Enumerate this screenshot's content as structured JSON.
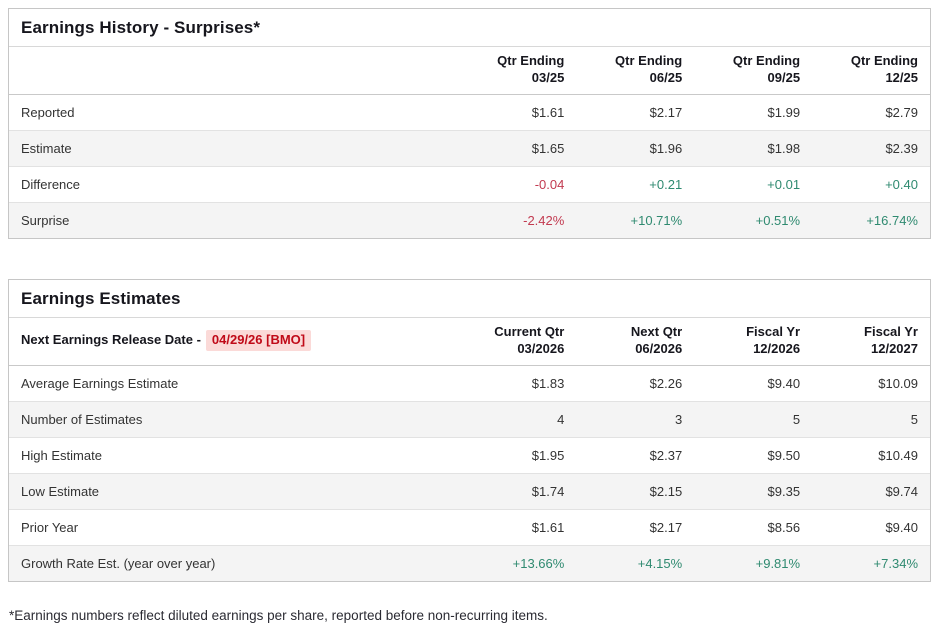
{
  "colors": {
    "positive": "#2f8a70",
    "negative": "#c23a50",
    "release_date_text": "#c00a18",
    "release_date_bg": "#fbdad8"
  },
  "history": {
    "title": "Earnings History - Surprises*",
    "columns": [
      {
        "line1": "Qtr Ending",
        "line2": "03/25"
      },
      {
        "line1": "Qtr Ending",
        "line2": "06/25"
      },
      {
        "line1": "Qtr Ending",
        "line2": "09/25"
      },
      {
        "line1": "Qtr Ending",
        "line2": "12/25"
      }
    ],
    "rows": [
      {
        "label": "Reported",
        "values": [
          "$1.61",
          "$2.17",
          "$1.99",
          "$2.79"
        ]
      },
      {
        "label": "Estimate",
        "values": [
          "$1.65",
          "$1.96",
          "$1.98",
          "$2.39"
        ]
      },
      {
        "label": "Difference",
        "values": [
          "-0.04",
          "+0.21",
          "+0.01",
          "+0.40"
        ]
      },
      {
        "label": "Surprise",
        "values": [
          "-2.42%",
          "+10.71%",
          "+0.51%",
          "+16.74%"
        ]
      }
    ]
  },
  "estimates": {
    "title": "Earnings Estimates",
    "release_label": "Next Earnings Release Date -",
    "release_date": "04/29/26 [BMO]",
    "columns": [
      {
        "line1": "Current Qtr",
        "line2": "03/2026"
      },
      {
        "line1": "Next Qtr",
        "line2": "06/2026"
      },
      {
        "line1": "Fiscal Yr",
        "line2": "12/2026"
      },
      {
        "line1": "Fiscal Yr",
        "line2": "12/2027"
      }
    ],
    "rows": [
      {
        "label": "Average Earnings Estimate",
        "values": [
          "$1.83",
          "$2.26",
          "$9.40",
          "$10.09"
        ]
      },
      {
        "label": "Number of Estimates",
        "values": [
          "4",
          "3",
          "5",
          "5"
        ]
      },
      {
        "label": "High Estimate",
        "values": [
          "$1.95",
          "$2.37",
          "$9.50",
          "$10.49"
        ]
      },
      {
        "label": "Low Estimate",
        "values": [
          "$1.74",
          "$2.15",
          "$9.35",
          "$9.74"
        ]
      },
      {
        "label": "Prior Year",
        "values": [
          "$1.61",
          "$2.17",
          "$8.56",
          "$9.40"
        ]
      },
      {
        "label": "Growth Rate Est. (year over year)",
        "values": [
          "+13.66%",
          "+4.15%",
          "+9.81%",
          "+7.34%"
        ]
      }
    ]
  },
  "footnote": "*Earnings numbers reflect diluted earnings per share, reported before non-recurring items."
}
